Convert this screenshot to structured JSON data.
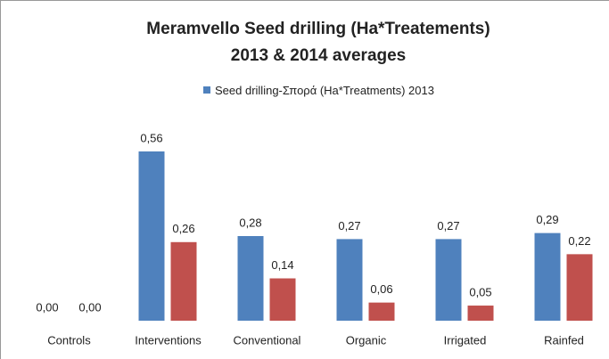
{
  "chart_data": {
    "type": "bar",
    "title": "Meramvello Seed drilling  (Ha*Treatements)",
    "subtitle": "2013 & 2014 averages",
    "categories": [
      "Controls",
      "Interventions",
      "Conventional",
      "Organic",
      "Irrigated",
      "Rainfed"
    ],
    "series": [
      {
        "name": "Seed drilling-Σπορά  (Ha*Treatments) 2013",
        "color": "#4f81bd",
        "values": [
          0,
          0.56,
          0.28,
          0.27,
          0.27,
          0.29
        ],
        "value_labels": [
          "0,00",
          "0,56",
          "0,28",
          "0,27",
          "0,27",
          "0,29"
        ]
      },
      {
        "color": "#c0504d",
        "values": [
          0,
          0.26,
          0.14,
          0.06,
          0.05,
          0.22
        ],
        "value_labels": [
          "0,00",
          "0,26",
          "0,14",
          "0,06",
          "0,05",
          "0,22"
        ]
      }
    ]
  }
}
